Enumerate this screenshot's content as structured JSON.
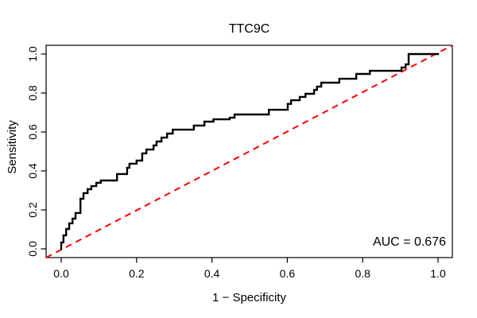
{
  "title": "TTC9C",
  "x_axis": {
    "label": "1 − Specificity",
    "tick_labels": [
      "0.0",
      "0.2",
      "0.4",
      "0.6",
      "0.8",
      "1.0"
    ]
  },
  "y_axis": {
    "label": "Sensitivity",
    "tick_labels": [
      "0.0",
      "0.2",
      "0.4",
      "0.6",
      "0.8",
      "1.0"
    ]
  },
  "annotation": {
    "auc_text": "AUC = 0.676",
    "auc_value": 0.676
  },
  "colors": {
    "background": "#ffffff",
    "roc_curve": "#000000",
    "diagonal": "#ff0000",
    "box": "#000000",
    "text": "#000000"
  },
  "chart_data": {
    "type": "line",
    "subtype": "roc-curve",
    "title": "TTC9C",
    "xlabel": "1 − Specificity",
    "ylabel": "Sensitivity",
    "xlim": [
      0,
      1
    ],
    "ylim": [
      0,
      1
    ],
    "x_ticks": [
      0.0,
      0.2,
      0.4,
      0.6,
      0.8,
      1.0
    ],
    "y_ticks": [
      0.0,
      0.2,
      0.4,
      0.6,
      0.8,
      1.0
    ],
    "grid": false,
    "legend_position": "none",
    "annotations": [
      {
        "text": "AUC = 0.676",
        "x": 0.98,
        "y": 0.05,
        "halign": "right"
      }
    ],
    "series": [
      {
        "name": "ROC curve",
        "style": "step",
        "color": "#000000",
        "line_width": 2.4,
        "points": [
          [
            0.0,
            0.0
          ],
          [
            0.0,
            0.033
          ],
          [
            0.006,
            0.069
          ],
          [
            0.013,
            0.102
          ],
          [
            0.021,
            0.131
          ],
          [
            0.03,
            0.155
          ],
          [
            0.038,
            0.184
          ],
          [
            0.051,
            0.257
          ],
          [
            0.059,
            0.286
          ],
          [
            0.07,
            0.306
          ],
          [
            0.08,
            0.322
          ],
          [
            0.093,
            0.339
          ],
          [
            0.105,
            0.351
          ],
          [
            0.148,
            0.384
          ],
          [
            0.175,
            0.416
          ],
          [
            0.181,
            0.437
          ],
          [
            0.2,
            0.453
          ],
          [
            0.215,
            0.49
          ],
          [
            0.226,
            0.51
          ],
          [
            0.245,
            0.531
          ],
          [
            0.253,
            0.551
          ],
          [
            0.266,
            0.571
          ],
          [
            0.281,
            0.592
          ],
          [
            0.296,
            0.612
          ],
          [
            0.352,
            0.633
          ],
          [
            0.38,
            0.653
          ],
          [
            0.404,
            0.665
          ],
          [
            0.447,
            0.673
          ],
          [
            0.46,
            0.69
          ],
          [
            0.551,
            0.714
          ],
          [
            0.601,
            0.744
          ],
          [
            0.61,
            0.763
          ],
          [
            0.633,
            0.78
          ],
          [
            0.648,
            0.796
          ],
          [
            0.671,
            0.816
          ],
          [
            0.679,
            0.833
          ],
          [
            0.69,
            0.853
          ],
          [
            0.738,
            0.873
          ],
          [
            0.783,
            0.898
          ],
          [
            0.819,
            0.914
          ],
          [
            0.903,
            0.931
          ],
          [
            0.914,
            0.947
          ],
          [
            0.922,
            1.0
          ],
          [
            1.0,
            1.0
          ]
        ]
      },
      {
        "name": "Chance diagonal",
        "style": "dashed",
        "color": "#ff0000",
        "line_width": 2,
        "points": [
          [
            0,
            0
          ],
          [
            1,
            1
          ]
        ]
      }
    ]
  }
}
